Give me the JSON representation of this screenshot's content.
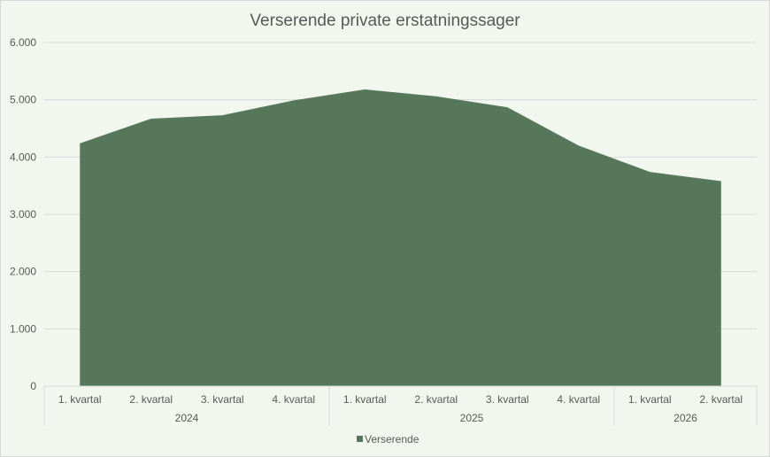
{
  "chart_data": {
    "type": "area",
    "title": "Verserende private erstatningssager",
    "categories": [
      "1. kvartal",
      "2. kvartal",
      "3. kvartal",
      "4. kvartal",
      "1. kvartal",
      "2. kvartal",
      "3. kvartal",
      "4. kvartal",
      "1. kvartal",
      "2. kvartal"
    ],
    "groups": [
      {
        "label": "2024",
        "count": 4
      },
      {
        "label": "2025",
        "count": 4
      },
      {
        "label": "2026",
        "count": 2
      }
    ],
    "series": [
      {
        "name": "Verserende",
        "color": "#56775a",
        "values": [
          4240,
          4670,
          4730,
          4990,
          5180,
          5060,
          4870,
          4200,
          3740,
          3580
        ]
      }
    ],
    "y_ticks": [
      "0",
      "1.000",
      "2.000",
      "3.000",
      "4.000",
      "5.000",
      "6.000"
    ],
    "ylim": [
      0,
      6000
    ],
    "grid": true,
    "legend_position": "bottom"
  }
}
